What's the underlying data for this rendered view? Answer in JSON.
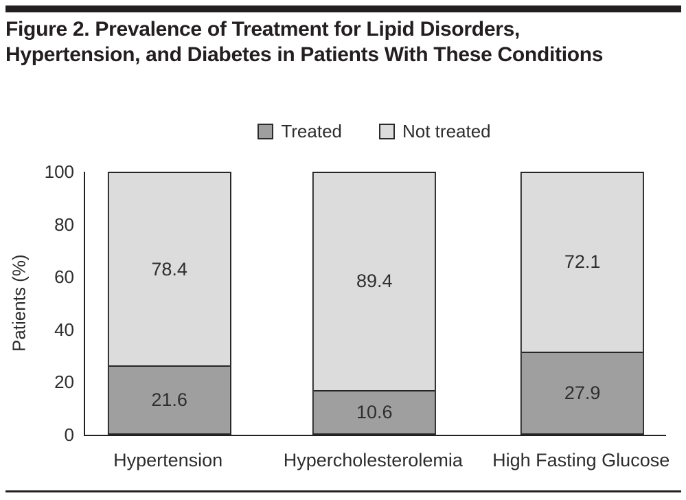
{
  "figure": {
    "title": "Figure 2. Prevalence of Treatment for Lipid Disorders, Hypertension, and Diabetes in Patients With These Conditions"
  },
  "legend": [
    {
      "name": "treated",
      "label": "Treated",
      "color": "#9f9f9f"
    },
    {
      "name": "not-treated",
      "label": "Not treated",
      "color": "#dcdcdc"
    }
  ],
  "chart_data": {
    "type": "bar",
    "stacked": true,
    "categories": [
      "Hypertension",
      "Hypercholesterolemia",
      "High Fasting Glucose"
    ],
    "series": [
      {
        "name": "Treated",
        "color": "#9f9f9f",
        "values": [
          21.6,
          10.6,
          27.9
        ]
      },
      {
        "name": "Not treated",
        "color": "#dcdcdc",
        "values": [
          78.4,
          89.4,
          72.1
        ]
      }
    ],
    "title": "",
    "xlabel": "",
    "ylabel": "Patients (%)",
    "ylim": [
      0,
      100
    ],
    "yticks": [
      0,
      20,
      40,
      60,
      80,
      100
    ],
    "grid": false,
    "legend_position": "top",
    "colors": {
      "axis": "#231f20",
      "bar_border": "#262626",
      "text": "#2d2d2d"
    }
  }
}
